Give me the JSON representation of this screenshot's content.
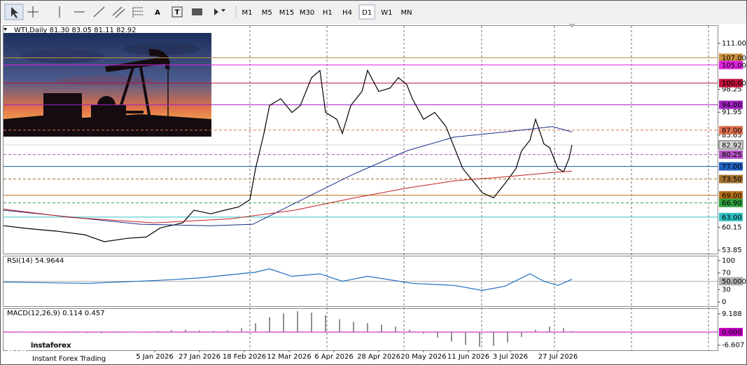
{
  "toolbar": {
    "text_icons": [
      "A",
      "T"
    ],
    "timeframes": [
      "M1",
      "M5",
      "M15",
      "M30",
      "H1",
      "H4",
      "D1",
      "W1",
      "MN"
    ],
    "active": "D1"
  },
  "watermark": {
    "brand": "instaforex",
    "slogan": "Instant Forex Trading"
  },
  "chart_data": [
    {
      "type": "line",
      "title": "WTI,Daily  81.30 83.05 81.11 82.92",
      "xlim": [
        0,
        255
      ],
      "ylim": [
        52.9,
        115.8
      ],
      "xticks": [
        {
          "value": 54,
          "label": "5 Jan 2026"
        },
        {
          "value": 70,
          "label": "27 Jan 2026"
        },
        {
          "value": 86,
          "label": "18 Feb 2026"
        },
        {
          "value": 102,
          "label": "12 Mar 2026"
        },
        {
          "value": 118,
          "label": "6 Apr 2026"
        },
        {
          "value": 134,
          "label": "28 Apr 2026"
        },
        {
          "value": 150,
          "label": "20 May 2026"
        },
        {
          "value": 166,
          "label": "11 Jun 2026"
        },
        {
          "value": 181,
          "label": "3 Jul 2026"
        },
        {
          "value": 198,
          "label": "27 Jul 2026"
        }
      ],
      "yticks": [
        {
          "value": 111,
          "label": "111.00"
        },
        98.25,
        91.95,
        85.65,
        60.15,
        53.85
      ],
      "hlines": [
        {
          "value": 107,
          "label": "107.00",
          "color": "#c89040",
          "style": "solid"
        },
        {
          "value": 105,
          "label": "105.00",
          "color": "#e020e0",
          "style": "solid"
        },
        {
          "value": 100,
          "label": "100.00",
          "color": "#c0103a",
          "style": "solid"
        },
        {
          "value": 94,
          "label": "94.00",
          "color": "#a020c0",
          "style": "solid"
        },
        {
          "value": 87,
          "label": "87.00",
          "color": "#e07050",
          "style": "dashed"
        },
        {
          "value": 82.92,
          "label": "82.92",
          "color": "#d8d8d8",
          "style": "solid"
        },
        {
          "value": 80.25,
          "label": "80.25",
          "color": "#b050c0",
          "style": "dashed"
        },
        {
          "value": 77,
          "label": "77.00",
          "color": "#2060c0",
          "style": "solid"
        },
        {
          "value": 73.5,
          "label": "73.50",
          "color": "#a07030",
          "style": "dashed"
        },
        {
          "value": 69,
          "label": "69.00",
          "color": "#b8701a",
          "style": "solid"
        },
        {
          "value": 66.9,
          "label": "66.90",
          "color": "#30a040",
          "style": "dashed"
        },
        {
          "value": 63,
          "label": "63.00",
          "color": "#30c0c0",
          "style": "solid"
        }
      ],
      "series": [
        {
          "color": "#000000",
          "x": [
            0,
            9,
            19,
            29,
            36,
            44,
            51,
            56,
            64,
            68,
            74,
            79,
            84,
            88,
            90,
            93,
            95,
            99,
            103,
            106,
            110,
            113,
            115,
            119,
            121,
            124,
            128,
            130,
            134,
            138,
            141,
            144,
            146,
            150,
            154,
            158,
            161,
            164,
            168,
            171,
            175,
            179,
            183,
            185,
            188,
            190,
            193,
            195,
            198,
            200,
            202,
            203
          ],
          "values": [
            60.6,
            59.8,
            59.1,
            58.1,
            56.2,
            57.1,
            57.5,
            60.0,
            61.4,
            64.9,
            63.9,
            64.9,
            65.8,
            67.8,
            76.4,
            86.1,
            93.8,
            95.7,
            91.9,
            93.8,
            101.5,
            103.5,
            91.9,
            90.0,
            86.1,
            93.8,
            97.7,
            103.5,
            97.7,
            98.6,
            101.5,
            99.6,
            95.7,
            90.0,
            91.9,
            88.0,
            82.2,
            76.4,
            72.6,
            69.7,
            68.3,
            72.2,
            76.4,
            81.3,
            84.2,
            90.0,
            83.2,
            82.2,
            76.4,
            75.5,
            79.3,
            82.92
          ]
        },
        {
          "color": "#1a2a8a",
          "x": [
            0,
            49,
            74,
            89,
            104,
            124,
            144,
            161,
            179,
            196,
            203
          ],
          "values": [
            64.9,
            61.0,
            60.6,
            61.0,
            66.8,
            74.5,
            81.3,
            85.1,
            86.5,
            88.0,
            86.5
          ]
        },
        {
          "color": "#c02020",
          "x": [
            0,
            24,
            54,
            81,
            104,
            124,
            144,
            161,
            179,
            196,
            203
          ],
          "values": [
            65.2,
            62.9,
            61.4,
            62.5,
            64.9,
            68.1,
            71.0,
            73.0,
            74.1,
            75.3,
            75.7
          ]
        }
      ]
    },
    {
      "type": "line",
      "title": "RSI(14) 54.9644",
      "xlim": [
        0,
        255
      ],
      "ylim": [
        -10,
        110
      ],
      "yticks": [
        100,
        70,
        30,
        0
      ],
      "hlines": [
        {
          "value": 50,
          "label": "50.0000",
          "color": "#b0b0b0",
          "style": "solid"
        }
      ],
      "series": [
        {
          "color": "#1e6fbf",
          "x": [
            0,
            30,
            55,
            70,
            90,
            95,
            103,
            113,
            121,
            130,
            146,
            161,
            171,
            179,
            188,
            193,
            198,
            203
          ],
          "values": [
            48,
            45,
            52,
            58,
            72,
            80,
            62,
            68,
            50,
            62,
            45,
            40,
            28,
            38,
            68,
            50,
            40,
            54.96
          ]
        }
      ]
    },
    {
      "type": "bar",
      "title": "MACD(12,26,9) 0.114 0.457",
      "xlim": [
        0,
        255
      ],
      "ylim": [
        -9.19,
        11.66
      ],
      "yticks": [
        9.188,
        -6.607
      ],
      "hlines": [
        {
          "value": 0,
          "label": "0.000",
          "color": "#c000c0",
          "style": "solid"
        }
      ],
      "color": "#909090",
      "x": [
        0,
        5,
        10,
        15,
        20,
        25,
        30,
        35,
        40,
        45,
        50,
        55,
        60,
        65,
        70,
        75,
        80,
        85,
        90,
        95,
        100,
        105,
        110,
        115,
        120,
        125,
        130,
        135,
        140,
        145,
        150,
        155,
        160,
        165,
        170,
        175,
        180,
        185,
        190,
        195,
        200,
        203
      ],
      "values": [
        -0.3,
        -0.2,
        0.1,
        0.2,
        -0.1,
        -0.3,
        -0.5,
        -0.6,
        -0.4,
        -0.2,
        0.1,
        0.5,
        1.0,
        1.2,
        0.8,
        0.6,
        0.9,
        2,
        4.5,
        7.5,
        9.5,
        10.5,
        9.8,
        8.5,
        6.5,
        5.2,
        4.5,
        3.8,
        2.8,
        1.2,
        -0.8,
        -2.8,
        -4.8,
        -6.5,
        -7.4,
        -7,
        -5.2,
        -2.5,
        1.2,
        2.8,
        2,
        0.5
      ]
    }
  ]
}
